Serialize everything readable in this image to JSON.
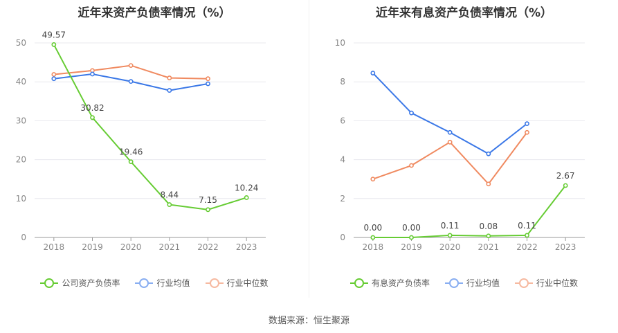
{
  "source": "数据来源：恒生聚源",
  "colors": {
    "green": "#66cc33",
    "blue": "#3b78e7",
    "orange": "#f08a60"
  },
  "chart_data": [
    {
      "type": "line",
      "title": "近年来资产负债率情况（%）",
      "x": [
        "2018",
        "2019",
        "2020",
        "2021",
        "2022",
        "2023"
      ],
      "ylim": [
        0,
        50
      ],
      "yticks": [
        "0",
        "10",
        "20",
        "30",
        "40",
        "50"
      ],
      "grid": true,
      "legend_position": "bottom",
      "series": [
        {
          "name": "公司资产负债率",
          "color": "#66cc33",
          "values": [
            49.57,
            30.82,
            19.46,
            8.44,
            7.15,
            10.24
          ],
          "labels": [
            "49.57",
            "30.82",
            "19.46",
            "8.44",
            "7.15",
            "10.24"
          ]
        },
        {
          "name": "行业均值",
          "color": "#3b78e7",
          "values": [
            40.8,
            42.0,
            40.1,
            37.8,
            39.5,
            null
          ]
        },
        {
          "name": "行业中位数",
          "color": "#f08a60",
          "values": [
            41.9,
            42.9,
            44.2,
            41.0,
            40.8,
            null
          ]
        }
      ]
    },
    {
      "type": "line",
      "title": "近年来有息资产负债率情况（%）",
      "x": [
        "2018",
        "2019",
        "2020",
        "2021",
        "2022",
        "2023"
      ],
      "ylim": [
        0,
        10
      ],
      "yticks": [
        "0",
        "2",
        "4",
        "6",
        "8",
        "10"
      ],
      "grid": true,
      "legend_position": "bottom",
      "series": [
        {
          "name": "有息资产负债率",
          "color": "#66cc33",
          "values": [
            0.0,
            0.0,
            0.11,
            0.08,
            0.11,
            2.67
          ],
          "labels": [
            "0.00",
            "0.00",
            "0.11",
            "0.08",
            "0.11",
            "2.67"
          ]
        },
        {
          "name": "行业均值",
          "color": "#3b78e7",
          "values": [
            8.45,
            6.4,
            5.4,
            4.3,
            5.85,
            null
          ]
        },
        {
          "name": "行业中位数",
          "color": "#f08a60",
          "values": [
            3.0,
            3.7,
            4.9,
            2.75,
            5.4,
            null
          ]
        }
      ]
    }
  ]
}
